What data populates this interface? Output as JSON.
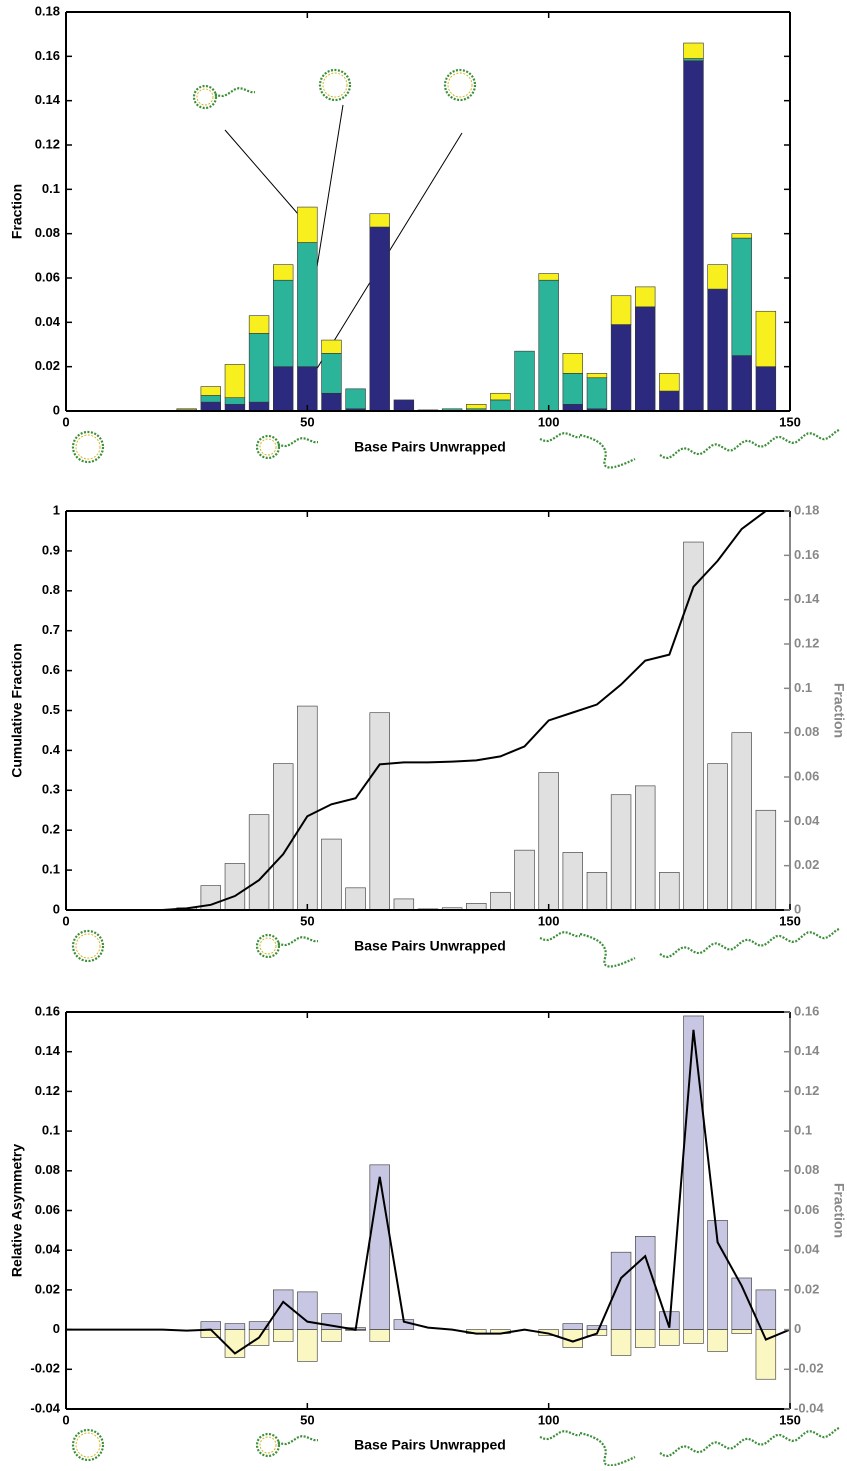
{
  "chart_data": [
    {
      "type": "bar",
      "stacked": true,
      "xlabel": "Base Pairs Unwrapped",
      "ylabel": "Fraction",
      "xlim": [
        0,
        150
      ],
      "xticks": [
        0,
        50,
        100,
        150
      ],
      "ylim": [
        0,
        0.18
      ],
      "yticks": [
        0,
        0.02,
        0.04,
        0.06,
        0.08,
        0.1,
        0.12,
        0.14,
        0.16,
        0.18
      ],
      "x": [
        25,
        30,
        35,
        40,
        45,
        50,
        55,
        60,
        65,
        70,
        75,
        80,
        85,
        90,
        95,
        100,
        105,
        110,
        115,
        120,
        125,
        130,
        135,
        140,
        145
      ],
      "series": [
        {
          "color": "#2b2a7f",
          "values": [
            0,
            0.004,
            0.003,
            0.004,
            0.02,
            0.02,
            0.008,
            0.001,
            0.083,
            0.005,
            0,
            0,
            0,
            0,
            0,
            0,
            0.003,
            0.001,
            0.039,
            0.047,
            0.009,
            0.158,
            0.055,
            0.025,
            0.02
          ]
        },
        {
          "color": "#2bb49a",
          "values": [
            0.0005,
            0.003,
            0.003,
            0.031,
            0.039,
            0.056,
            0.018,
            0.009,
            0,
            0,
            0.0005,
            0.001,
            0.001,
            0.005,
            0.027,
            0.059,
            0.014,
            0.014,
            0,
            0,
            0,
            0.001,
            0,
            0.053,
            0
          ]
        },
        {
          "color": "#f7f01e",
          "values": [
            0.0005,
            0.004,
            0.015,
            0.008,
            0.007,
            0.016,
            0.006,
            0,
            0.006,
            0,
            0,
            0,
            0.002,
            0.003,
            0,
            0.003,
            0.009,
            0.002,
            0.013,
            0.009,
            0.008,
            0.007,
            0.011,
            0.002,
            0.025
          ]
        }
      ]
    },
    {
      "type": "combo",
      "xlabel": "Base Pairs Unwrapped",
      "ylabel": "Cumulative Fraction",
      "y2label": "Fraction",
      "xlim": [
        0,
        150
      ],
      "xticks": [
        0,
        50,
        100,
        150
      ],
      "ylim": [
        0,
        1
      ],
      "yticks": [
        0,
        0.1,
        0.2,
        0.3,
        0.4,
        0.5,
        0.6,
        0.7,
        0.8,
        0.9,
        1
      ],
      "y2lim": [
        0,
        0.18
      ],
      "y2ticks": [
        0,
        0.02,
        0.04,
        0.06,
        0.08,
        0.1,
        0.12,
        0.14,
        0.16,
        0.18
      ],
      "series": [
        {
          "type": "bar",
          "axis": "y2",
          "color": "#e0e0e0",
          "x": [
            25,
            30,
            35,
            40,
            45,
            50,
            55,
            60,
            65,
            70,
            75,
            80,
            85,
            90,
            95,
            100,
            105,
            110,
            115,
            120,
            125,
            130,
            135,
            140,
            145
          ],
          "values": [
            0.001,
            0.011,
            0.021,
            0.043,
            0.066,
            0.092,
            0.032,
            0.01,
            0.089,
            0.005,
            0.0005,
            0.001,
            0.003,
            0.008,
            0.027,
            0.062,
            0.026,
            0.017,
            0.052,
            0.056,
            0.017,
            0.166,
            0.066,
            0.08,
            0.045
          ]
        },
        {
          "type": "line",
          "color": "#000000",
          "x": [
            0,
            5,
            10,
            15,
            20,
            25,
            30,
            35,
            40,
            45,
            50,
            55,
            60,
            65,
            70,
            75,
            80,
            85,
            90,
            95,
            100,
            105,
            110,
            115,
            120,
            125,
            130,
            135,
            140,
            145
          ],
          "values": [
            0,
            0,
            0,
            0,
            0,
            0.004,
            0.013,
            0.035,
            0.075,
            0.14,
            0.235,
            0.265,
            0.28,
            0.365,
            0.37,
            0.37,
            0.372,
            0.375,
            0.385,
            0.41,
            0.475,
            0.495,
            0.515,
            0.565,
            0.625,
            0.64,
            0.81,
            0.875,
            0.955,
            1
          ]
        }
      ]
    },
    {
      "type": "combo",
      "xlabel": "Base Pairs Unwrapped",
      "ylabel": "Relative Asymmetry",
      "y2label": "Fraction",
      "xlim": [
        0,
        150
      ],
      "xticks": [
        0,
        50,
        100,
        150
      ],
      "ylim": [
        -0.04,
        0.16
      ],
      "yticks": [
        -0.04,
        -0.02,
        0,
        0.02,
        0.04,
        0.06,
        0.08,
        0.1,
        0.12,
        0.14,
        0.16
      ],
      "y2lim": [
        -0.04,
        0.16
      ],
      "y2ticks": [
        -0.04,
        -0.02,
        0,
        0.02,
        0.04,
        0.06,
        0.08,
        0.1,
        0.12,
        0.14,
        0.16
      ],
      "series": [
        {
          "type": "bar",
          "axis": "y2",
          "color": "#c8c7e3",
          "x": [
            25,
            30,
            35,
            40,
            45,
            50,
            55,
            60,
            65,
            70,
            75,
            80,
            85,
            90,
            95,
            100,
            105,
            110,
            115,
            120,
            125,
            130,
            135,
            140,
            145
          ],
          "values": [
            0,
            0.004,
            0.003,
            0.004,
            0.02,
            0.019,
            0.008,
            0.001,
            0.083,
            0.005,
            0,
            0,
            0,
            0,
            0,
            0,
            0.003,
            0.002,
            0.039,
            0.047,
            0.009,
            0.158,
            0.055,
            0.026,
            0.02
          ]
        },
        {
          "type": "bar",
          "axis": "y2",
          "color": "#fbf7c2",
          "x": [
            25,
            30,
            35,
            40,
            45,
            50,
            55,
            60,
            65,
            70,
            75,
            80,
            85,
            90,
            95,
            100,
            105,
            110,
            115,
            120,
            125,
            130,
            135,
            140,
            145
          ],
          "values": [
            0,
            -0.004,
            -0.014,
            -0.008,
            -0.006,
            -0.016,
            -0.006,
            -0.0005,
            -0.006,
            0,
            0,
            0,
            -0.002,
            -0.002,
            0,
            -0.003,
            -0.009,
            -0.003,
            -0.013,
            -0.009,
            -0.008,
            -0.007,
            -0.011,
            -0.002,
            -0.025
          ]
        },
        {
          "type": "line",
          "color": "#000000",
          "x": [
            0,
            5,
            10,
            15,
            20,
            25,
            30,
            35,
            40,
            45,
            50,
            55,
            60,
            65,
            70,
            75,
            80,
            85,
            90,
            95,
            100,
            105,
            110,
            115,
            120,
            125,
            130,
            135,
            140,
            145,
            150
          ],
          "values": [
            0,
            0,
            0,
            0,
            0,
            -0.0005,
            0,
            -0.012,
            -0.004,
            0.014,
            0.004,
            0.002,
            0,
            0.077,
            0.004,
            0.001,
            0,
            -0.002,
            -0.002,
            0,
            -0.002,
            -0.006,
            -0.002,
            0.026,
            0.037,
            0.001,
            0.151,
            0.044,
            0.022,
            -0.005,
            0
          ]
        }
      ]
    }
  ]
}
